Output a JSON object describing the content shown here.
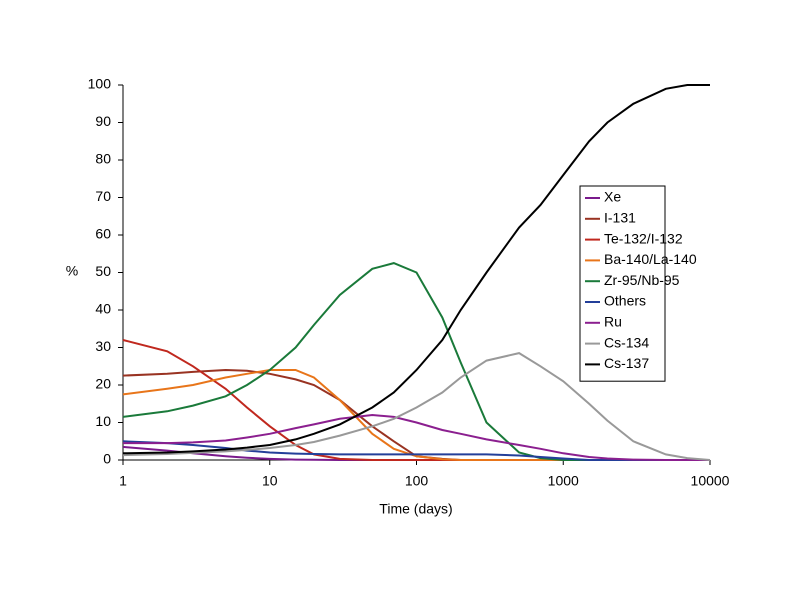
{
  "chart_data": {
    "type": "line",
    "xlabel": "Time (days)",
    "ylabel": "%",
    "xscale": "log",
    "xlim": [
      1,
      10000
    ],
    "xticks": [
      1,
      10,
      100,
      1000,
      10000
    ],
    "ylim": [
      0,
      100
    ],
    "yticks": [
      0,
      10,
      20,
      30,
      40,
      50,
      60,
      70,
      80,
      90,
      100
    ],
    "grid": false,
    "legend": "right",
    "x": [
      1,
      2,
      3,
      5,
      7,
      10,
      15,
      20,
      30,
      50,
      70,
      100,
      150,
      200,
      300,
      500,
      700,
      1000,
      1500,
      2000,
      3000,
      5000,
      7000,
      10000
    ],
    "series": [
      {
        "name": "Xe",
        "color": "#7a1a8c",
        "values": [
          3.5,
          2.5,
          1.8,
          1,
          0.6,
          0.3,
          0.1,
          0.05,
          0,
          0,
          0,
          0,
          0,
          0,
          0,
          0,
          0,
          0,
          0,
          0,
          0,
          0,
          0,
          0
        ]
      },
      {
        "name": "I-131",
        "color": "#993322",
        "values": [
          22.5,
          23,
          23.5,
          24,
          23.8,
          23,
          21.5,
          20,
          16,
          9,
          5,
          1,
          0.3,
          0,
          0,
          0,
          0,
          0,
          0,
          0,
          0,
          0,
          0,
          0
        ]
      },
      {
        "name": "Te-132/I-132",
        "color": "#c0281e",
        "values": [
          32,
          29,
          25,
          19,
          14,
          9,
          4,
          1.5,
          0.3,
          0,
          0,
          0,
          0,
          0,
          0,
          0,
          0,
          0,
          0,
          0,
          0,
          0,
          0,
          0
        ]
      },
      {
        "name": "Ba-140/La-140",
        "color": "#e8751a",
        "values": [
          17.5,
          19,
          20,
          22,
          23,
          24,
          24,
          22,
          16,
          7,
          3,
          1,
          0.2,
          0,
          0,
          0,
          0,
          0,
          0,
          0,
          0,
          0,
          0,
          0
        ]
      },
      {
        "name": "Zr-95/Nb-95",
        "color": "#1a7a3a",
        "values": [
          11.5,
          13,
          14.5,
          17,
          20,
          24,
          30,
          36,
          44,
          51,
          52.5,
          50,
          38,
          26,
          10,
          2,
          0.5,
          0,
          0,
          0,
          0,
          0,
          0,
          0
        ]
      },
      {
        "name": "Others",
        "color": "#233f99",
        "values": [
          5,
          4.5,
          4,
          3.2,
          2.5,
          2,
          1.7,
          1.6,
          1.5,
          1.5,
          1.5,
          1.5,
          1.5,
          1.5,
          1.5,
          1.2,
          0.8,
          0.4,
          0,
          0,
          0,
          0,
          0,
          0
        ]
      },
      {
        "name": "Ru",
        "color": "#8b1f8f",
        "values": [
          4.5,
          4.5,
          4.7,
          5.2,
          6,
          7,
          8.5,
          9.5,
          11,
          12,
          11.5,
          10,
          8,
          7,
          5.5,
          4,
          3,
          1.8,
          0.8,
          0.4,
          0.1,
          0,
          0,
          0
        ]
      },
      {
        "name": "Cs-134",
        "color": "#999999",
        "values": [
          1.3,
          1.6,
          1.9,
          2.3,
          2.7,
          3.2,
          4,
          4.8,
          6.5,
          9,
          11,
          14,
          18,
          22,
          26.5,
          28.5,
          25,
          21,
          15,
          10.5,
          5,
          1.5,
          0.5,
          0
        ]
      },
      {
        "name": "Cs-137",
        "color": "#000000",
        "values": [
          1.8,
          2,
          2.3,
          2.8,
          3.3,
          4,
          5.5,
          7,
          9.5,
          14,
          18,
          24,
          32,
          40,
          50,
          62,
          68,
          76,
          85,
          90,
          95,
          99,
          100,
          100
        ]
      }
    ]
  }
}
